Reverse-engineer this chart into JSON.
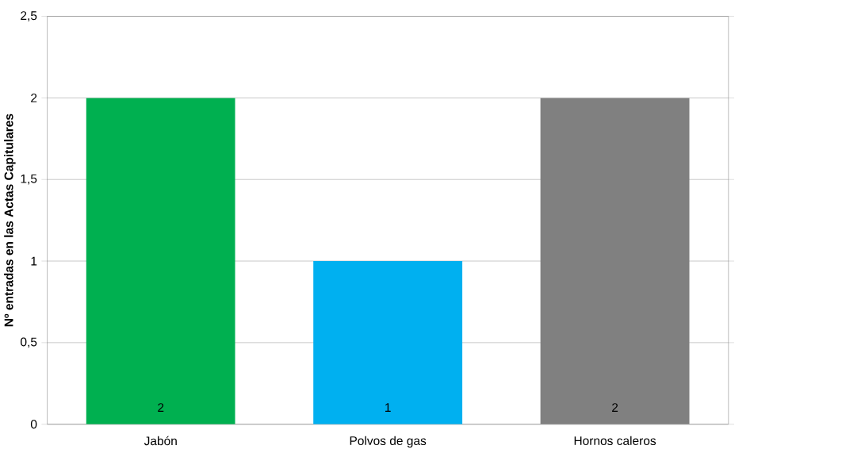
{
  "chart_data": {
    "type": "bar",
    "ylabel": "Nº entradas en las Actas Capitulares",
    "categories": [
      "Jabón",
      "Polvos de gas",
      "Hornos caleros"
    ],
    "values": [
      2,
      1,
      2
    ],
    "colors": [
      "#00b050",
      "#00b0f0",
      "#808080"
    ],
    "ylim": [
      0,
      2.5
    ],
    "yticks": [
      0,
      {
        "value": 0.5,
        "label": "0,5"
      },
      1,
      {
        "value": 1.5,
        "label": "1,5"
      },
      2,
      {
        "value": 2.5,
        "label": "2,5"
      }
    ],
    "grid": "y",
    "data_labels": true
  }
}
